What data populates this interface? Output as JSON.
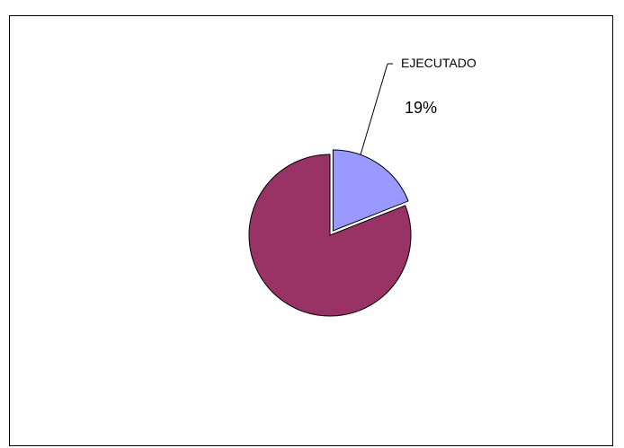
{
  "chart_data": {
    "type": "pie",
    "title": "",
    "slices": [
      {
        "label": "EJECUTADO",
        "value": 19,
        "color": "#9999ff",
        "exploded": true,
        "display_percent": "19%"
      },
      {
        "label": "",
        "value": 81,
        "color": "#993366",
        "exploded": false,
        "display_percent": ""
      }
    ]
  }
}
